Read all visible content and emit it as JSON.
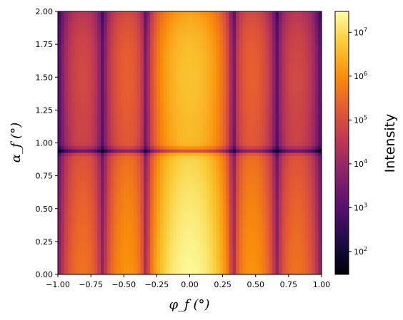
{
  "chart_data": {
    "type": "heatmap",
    "title": "",
    "xlabel": "φ_f (°)",
    "ylabel": "α_f (°)",
    "xlim": [
      -1.0,
      1.0
    ],
    "ylim": [
      0.0,
      2.0
    ],
    "x_ticks": [
      "−1.00",
      "−0.75",
      "−0.50",
      "−0.25",
      "0.00",
      "0.25",
      "0.50",
      "0.75",
      "1.00"
    ],
    "y_ticks": [
      "0.00",
      "0.25",
      "0.50",
      "0.75",
      "1.00",
      "1.25",
      "1.50",
      "1.75",
      "2.00"
    ],
    "colormap": "inferno",
    "colorbar": {
      "label": "Intensity",
      "scale": "log",
      "range": [
        30,
        30000000
      ],
      "ticks": [
        {
          "exp": 2,
          "label": "10"
        },
        {
          "exp": 3,
          "label": "10"
        },
        {
          "exp": 4,
          "label": "10"
        },
        {
          "exp": 5,
          "label": "10"
        },
        {
          "exp": 6,
          "label": "10"
        },
        {
          "exp": 7,
          "label": "10"
        }
      ]
    },
    "features": {
      "central_peak_halfwidth_phi": 0.3,
      "fringe_minima_phi": [
        -0.33,
        0.33,
        -0.63,
        0.63,
        -0.88,
        0.88
      ],
      "dark_band_alpha": 0.94,
      "peak_intensity": 25000000
    }
  }
}
